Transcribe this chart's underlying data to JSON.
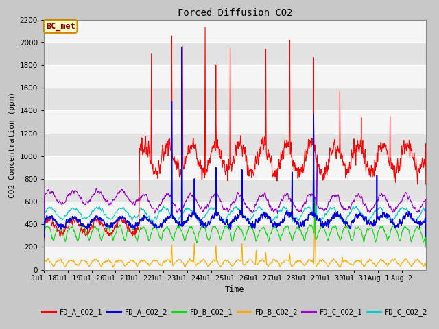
{
  "title": "Forced Diffusion CO2",
  "xlabel": "Time",
  "ylabel": "CO2 Concentration (ppm)",
  "ylim": [
    0,
    2200
  ],
  "background_color": "#c8c8c8",
  "plot_bg_light": "#f0f0f0",
  "plot_bg_dark": "#e0e0e0",
  "grid_color": "#ffffff",
  "annotation_text": "BC_met",
  "annotation_bg": "#ffffcc",
  "annotation_border": "#cc8800",
  "annotation_text_color": "#8b0000",
  "x_tick_labels": [
    "Jul 18",
    "Jul 19",
    "Jul 20",
    "Jul 21",
    "Jul 22",
    "Jul 23",
    "Jul 24",
    "Jul 25",
    "Jul 26",
    "Jul 27",
    "Jul 28",
    "Jul 29",
    "Jul 30",
    "Jul 31",
    "Aug 1",
    "Aug 2"
  ],
  "series": {
    "FD_A_CO2_1": {
      "color": "#ff0000",
      "lw": 0.8
    },
    "FD_A_CO2_2": {
      "color": "#0000dd",
      "lw": 1.2
    },
    "FD_B_CO2_1": {
      "color": "#00dd00",
      "lw": 0.8
    },
    "FD_B_CO2_2": {
      "color": "#ffaa00",
      "lw": 0.8
    },
    "FD_C_CO2_1": {
      "color": "#9900cc",
      "lw": 0.8
    },
    "FD_C_CO2_2": {
      "color": "#00cccc",
      "lw": 0.8
    }
  }
}
